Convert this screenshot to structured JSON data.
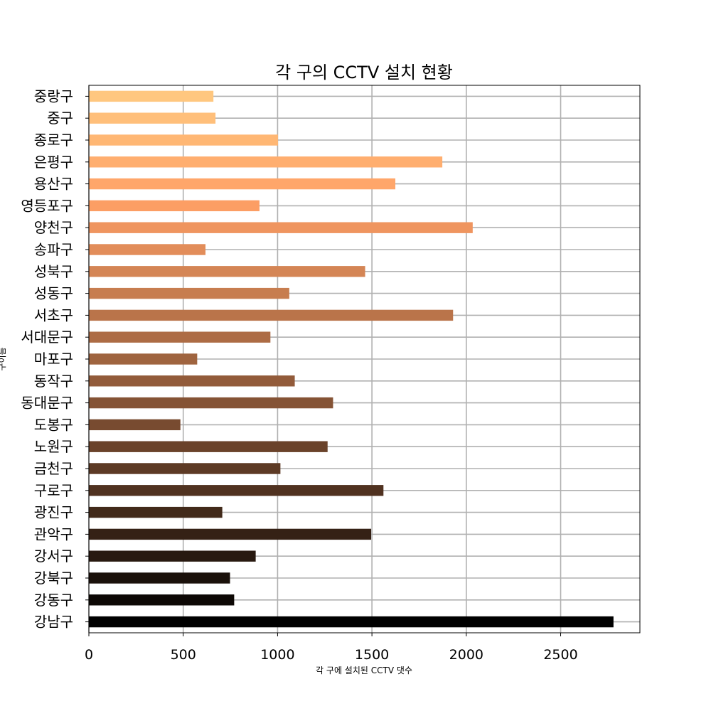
{
  "chart_data": {
    "type": "bar",
    "orientation": "horizontal",
    "title": "각 구의 CCTV 설치 현황",
    "xlabel": "각 구에 설치된 CCTV 댓수",
    "ylabel": "구이름",
    "xlim": [
      0,
      2920
    ],
    "xticks": [
      0,
      500,
      1000,
      1500,
      2000,
      2500
    ],
    "grid": true,
    "colormap": "copper (dark at bottom, light at top)",
    "categories": [
      "강남구",
      "강동구",
      "강북구",
      "강서구",
      "관악구",
      "광진구",
      "구로구",
      "금천구",
      "노원구",
      "도봉구",
      "동대문구",
      "동작구",
      "마포구",
      "서대문구",
      "서초구",
      "성동구",
      "성북구",
      "송파구",
      "양천구",
      "영등포구",
      "용산구",
      "은평구",
      "종로구",
      "중구",
      "중랑구"
    ],
    "values": [
      2780,
      770,
      748,
      884,
      1496,
      707,
      1561,
      1015,
      1265,
      485,
      1294,
      1091,
      574,
      962,
      1930,
      1062,
      1464,
      618,
      2034,
      904,
      1624,
      1873,
      1002,
      671,
      660
    ]
  }
}
